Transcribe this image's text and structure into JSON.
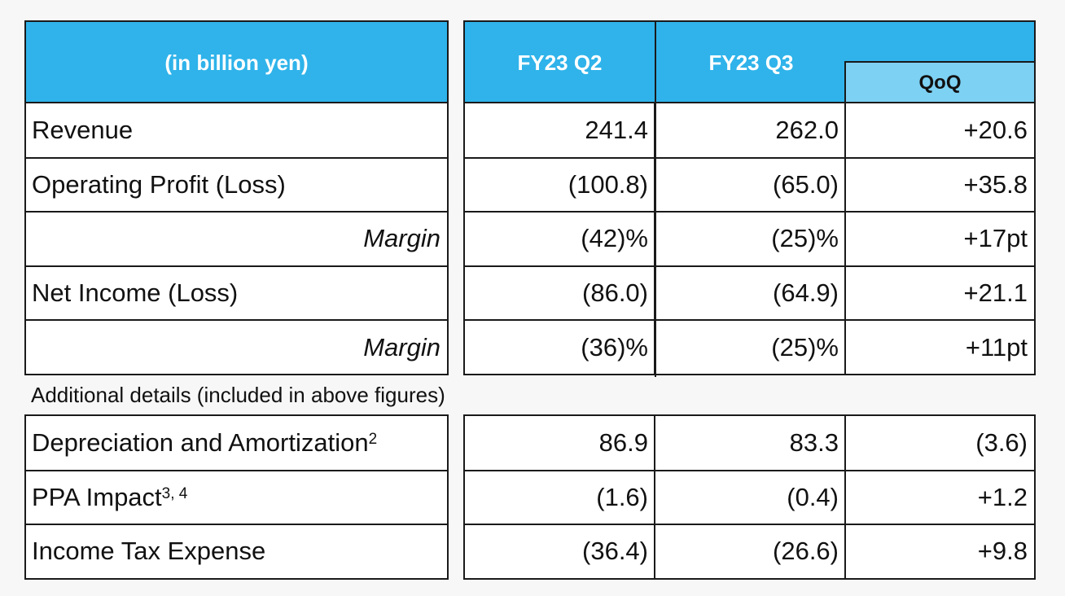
{
  "header": {
    "unit_label": "(in billion yen)",
    "col_q2": "FY23 Q2",
    "col_q3": "FY23 Q3",
    "col_qoq": "QoQ"
  },
  "main_rows": [
    {
      "label": "Revenue",
      "q2": "241.4",
      "q3": "262.0",
      "qoq": "+20.6",
      "style": "normal"
    },
    {
      "label": "Operating Profit (Loss)",
      "q2": "(100.8)",
      "q3": "(65.0)",
      "qoq": "+35.8",
      "style": "normal"
    },
    {
      "label": "Margin",
      "q2": "(42)%",
      "q3": "(25)%",
      "qoq": "+17pt",
      "style": "margin"
    },
    {
      "label": "Net Income (Loss)",
      "q2": "(86.0)",
      "q3": "(64.9)",
      "qoq": "+21.1",
      "style": "normal"
    },
    {
      "label": "Margin",
      "q2": "(36)%",
      "q3": "(25)%",
      "qoq": "+11pt",
      "style": "margin"
    }
  ],
  "additional_note": "Additional details (included in above figures)",
  "detail_rows": [
    {
      "label": "Depreciation and Amortization",
      "sup": "2",
      "q2": "86.9",
      "q3": "83.3",
      "qoq": "(3.6)"
    },
    {
      "label": "PPA Impact",
      "sup": "3, 4",
      "q2": "(1.6)",
      "q3": "(0.4)",
      "qoq": "+1.2"
    },
    {
      "label": "Income Tax Expense",
      "sup": "",
      "q2": "(36.4)",
      "q3": "(26.6)",
      "qoq": "+9.8"
    }
  ],
  "colors": {
    "header_blue": "#2fb3ea",
    "qoq_header_blue": "#7dd1f3",
    "border": "#1a1a1a"
  }
}
